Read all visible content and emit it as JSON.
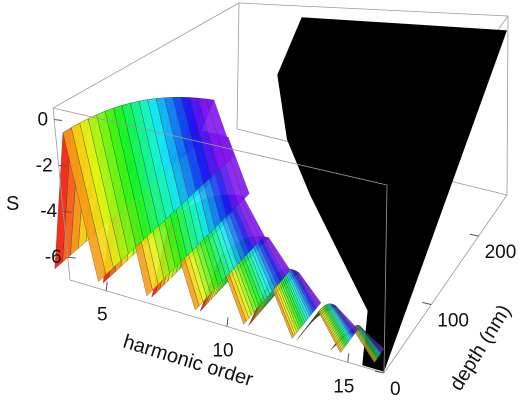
{
  "chart_data": {
    "type": "surface3d",
    "title": "",
    "zlabel": "S",
    "xlabel": "harmonic order",
    "ylabel": "depth (nm)",
    "x_ticks": [
      {
        "value": 5,
        "label": "5"
      },
      {
        "value": 10,
        "label": "10"
      },
      {
        "value": 15,
        "label": "15"
      }
    ],
    "y_ticks": [
      {
        "value": 0,
        "label": "0"
      },
      {
        "value": 100,
        "label": "100"
      },
      {
        "value": 200,
        "label": "200"
      }
    ],
    "z_ticks": [
      {
        "value": 0,
        "label": "0"
      },
      {
        "value": -2,
        "label": "-2"
      },
      {
        "value": -4,
        "label": "-4"
      },
      {
        "value": -6,
        "label": "-6"
      }
    ],
    "xlim": [
      3.5,
      16.5
    ],
    "ylim": [
      0,
      260
    ],
    "zlim": [
      -7,
      0.5
    ],
    "colormap": "rainbow",
    "background_region_color": "#000000",
    "ridges": [
      {
        "harmonic": 3.8,
        "peak_S": -0.5,
        "depth_end": 215
      },
      {
        "harmonic": 5.8,
        "peak_S": -1.1,
        "depth_end": 170
      },
      {
        "harmonic": 7.8,
        "peak_S": -3.3,
        "depth_end": 120
      },
      {
        "harmonic": 9.8,
        "peak_S": -4.2,
        "depth_end": 85
      },
      {
        "harmonic": 11.8,
        "peak_S": -4.6,
        "depth_end": 55
      },
      {
        "harmonic": 13.8,
        "peak_S": -5.3,
        "depth_end": 35
      },
      {
        "harmonic": 15.2,
        "peak_S": -5.6,
        "depth_end": 20
      }
    ]
  }
}
